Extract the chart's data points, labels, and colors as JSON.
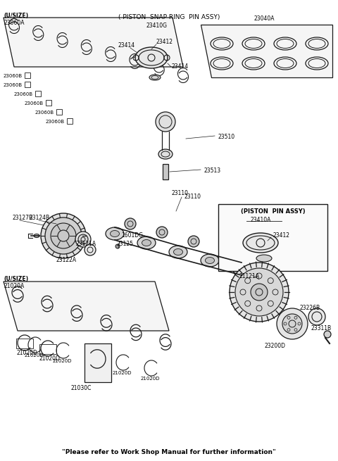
{
  "bg_color": "#ffffff",
  "line_color": "#1a1a1a",
  "figsize": [
    4.8,
    6.55
  ],
  "dpi": 100,
  "bottom_text": "\"Please refer to Work Shop Manual for further information\"",
  "parts": {
    "upper_snap_ring_label": "( PISTON  SNAP RING  PIN ASSY)",
    "upper_snap_ring_part": "23410G",
    "part_23040A": "23040A",
    "part_23414a": "23414",
    "part_23412": "23412",
    "part_23414b": "23414",
    "part_23060A": "23060A",
    "part_23060B": "23060B",
    "part_23510": "23510",
    "part_23513": "23513",
    "part_23127B": "23127B",
    "part_23124B": "23124B",
    "part_23121A": "23121A",
    "part_1601DG": "1601DG",
    "part_23125": "23125",
    "part_23122A": "23122A",
    "part_23110": "23110",
    "piston_pin_label": "(PISTON  PIN ASSY)",
    "piston_pin_part": "23410A",
    "part_23412b": "23412",
    "part_21020A": "21020A",
    "part_21020D": "21020D",
    "part_21030C": "21030C",
    "part_21121A": "21121A",
    "part_23200D": "23200D",
    "part_23226B": "23226B",
    "part_23311B": "23311B",
    "usize_upper": "(U/SIZE)",
    "usize_lower": "(U/SIZE)"
  }
}
